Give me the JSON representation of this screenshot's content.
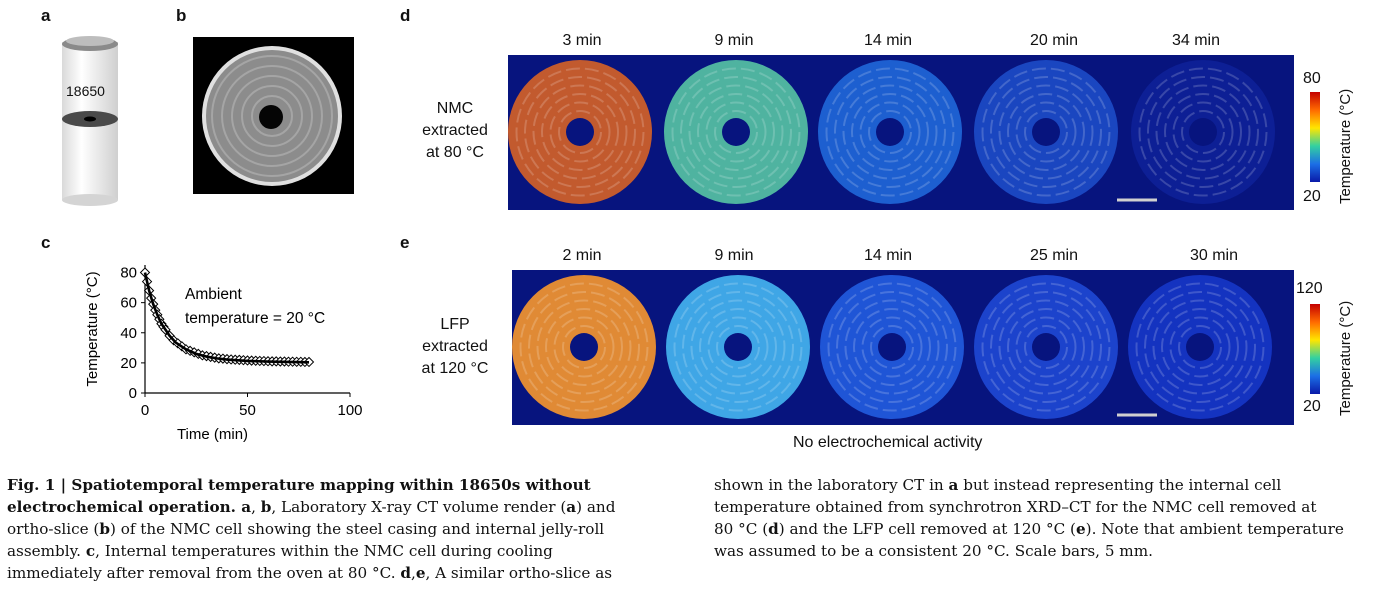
{
  "panel_labels": {
    "a": "a",
    "b": "b",
    "c": "c",
    "d": "d",
    "e": "e"
  },
  "panel_a": {
    "cell_label": "18650"
  },
  "panel_d": {
    "row_label_lines": [
      "NMC",
      "extracted",
      "at 80 °C"
    ],
    "times": [
      "3 min",
      "9 min",
      "14 min",
      "20 min",
      "34 min"
    ],
    "colorbar": {
      "max": "80",
      "min": "20",
      "label": "Temperature (°C)"
    }
  },
  "panel_e": {
    "row_label_lines": [
      "LFP",
      "extracted",
      "at 120 °C"
    ],
    "times": [
      "2 min",
      "9 min",
      "14 min",
      "25 min",
      "30 min"
    ],
    "colorbar": {
      "max": "120",
      "min": "20",
      "label": "Temperature (°C)"
    },
    "footer": "No electrochemical activity"
  },
  "colors": {
    "map_background": "#07147e",
    "nmc_3": "#c25a2e",
    "nmc_9": "#4fb3a0",
    "nmc_14": "#1d5fd0",
    "nmc_20": "#1a46c0",
    "nmc_34": "#0d1f95",
    "lfp_2": "#e08a35",
    "lfp_9": "#3fa6e6",
    "lfp_14": "#1f55d6",
    "lfp_25": "#1c43cc",
    "lfp_30": "#1433c0"
  },
  "chart_data": {
    "type": "scatter",
    "xlabel": "Time (min)",
    "ylabel": "Temperature (°C)",
    "xlim": [
      0,
      100
    ],
    "ylim": [
      0,
      85
    ],
    "xticks": [
      "0",
      "50",
      "100"
    ],
    "yticks": [
      "0",
      "20",
      "40",
      "60",
      "80"
    ],
    "annotation_lines": [
      "Ambient",
      "temperature = 20 °C"
    ],
    "series": [
      {
        "marker": "diamond",
        "x": [
          0,
          1,
          2,
          3,
          4,
          5,
          6,
          7,
          8,
          9,
          10,
          12,
          14,
          16,
          18,
          20,
          22,
          24,
          26,
          28,
          30,
          32,
          34,
          36,
          38,
          40,
          42,
          44,
          46,
          48,
          50,
          52,
          54,
          56,
          58,
          60,
          62,
          64,
          66,
          68,
          70,
          72,
          74,
          76,
          78,
          80
        ],
        "y": [
          80,
          74,
          68,
          63,
          59,
          55,
          52,
          49,
          46,
          44,
          42,
          38,
          35,
          33,
          31,
          29,
          28,
          27,
          26,
          25,
          24.5,
          24,
          23.5,
          23,
          22.8,
          22.5,
          22.3,
          22.1,
          22,
          21.8,
          21.6,
          21.5,
          21.4,
          21.3,
          21.2,
          21.1,
          21,
          21,
          20.9,
          20.9,
          20.8,
          20.8,
          20.7,
          20.7,
          20.6,
          20.6
        ]
      },
      {
        "marker": "line",
        "x": [
          0,
          2,
          4,
          6,
          8,
          10,
          12,
          15,
          20,
          25,
          30,
          35,
          40,
          50,
          60,
          70,
          80
        ],
        "y": [
          80,
          68,
          59,
          52,
          46,
          42,
          38,
          33.5,
          29,
          26,
          24.2,
          23,
          22.2,
          21.3,
          20.9,
          20.6,
          20.4
        ]
      }
    ]
  },
  "caption": {
    "left": [
      {
        "b": "Fig. 1 | Spatiotemporal temperature mapping within 18650s without"
      },
      {
        "b": "electrochemical operation. a",
        "t": ", ",
        "b2": "b",
        "t2": ", Laboratory X-ray CT volume render (",
        "b3": "a",
        "t3": ") and"
      },
      {
        "t": "ortho-slice (",
        "b": "b",
        "t2": ") of the NMC cell showing the steel casing and internal jelly-roll"
      },
      {
        "t": "assembly. ",
        "b": "c",
        "t2": ", Internal temperatures within the NMC cell during cooling"
      },
      {
        "t": "immediately after removal from the oven at 80 °C. ",
        "b": "d",
        "t2": ",",
        "b2": "e",
        "t3": ", A similar ortho-slice as"
      }
    ],
    "right": [
      {
        "t": "shown in the laboratory CT in ",
        "b": "a",
        "t2": " but instead representing the internal cell"
      },
      {
        "t": "temperature obtained from synchrotron XRD–CT for the NMC cell removed at"
      },
      {
        "t": "80 °C (",
        "b": "d",
        "t2": ") and the LFP cell removed at 120 °C (",
        "b2": "e",
        "t3": "). Note that ambient temperature"
      },
      {
        "t": "was assumed to be a consistent 20 °C. Scale bars, 5 mm."
      }
    ]
  }
}
